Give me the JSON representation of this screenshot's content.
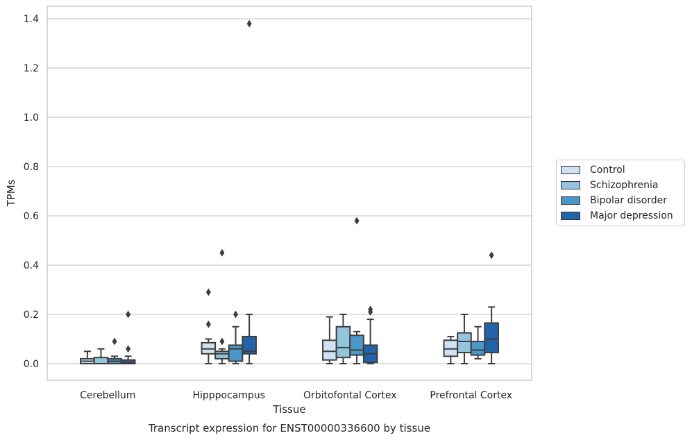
{
  "chart_data": {
    "type": "boxplot",
    "title": "Transcript expression for ENST00000336600 by tissue",
    "xlabel": "Tissue",
    "ylabel": "TPMs",
    "ylim": [
      -0.065,
      1.45
    ],
    "yticks": [
      "0.0",
      "0.2",
      "0.4",
      "0.6",
      "0.8",
      "1.0",
      "1.2",
      "1.4"
    ],
    "grid": "horizontal",
    "legend_position": "right",
    "categories": [
      "Cerebellum",
      "Hipppocampus",
      "Orbitofontal Cortex",
      "Prefrontal Cortex"
    ],
    "series": [
      {
        "name": "Control",
        "color": "#cfe1f2",
        "boxes": [
          {
            "whisker_low": 0.0,
            "q1": 0.0,
            "median": 0.01,
            "q3": 0.02,
            "whisker_high": 0.05,
            "outliers": []
          },
          {
            "whisker_low": 0.0,
            "q1": 0.04,
            "median": 0.06,
            "q3": 0.085,
            "whisker_high": 0.1,
            "outliers": [
              0.29,
              0.16
            ]
          },
          {
            "whisker_low": 0.0,
            "q1": 0.015,
            "median": 0.05,
            "q3": 0.095,
            "whisker_high": 0.19,
            "outliers": []
          },
          {
            "whisker_low": 0.0,
            "q1": 0.03,
            "median": 0.06,
            "q3": 0.095,
            "whisker_high": 0.11,
            "outliers": []
          }
        ]
      },
      {
        "name": "Schizophrenia",
        "color": "#93c4de",
        "boxes": [
          {
            "whisker_low": 0.0,
            "q1": 0.0,
            "median": 0.0,
            "q3": 0.025,
            "whisker_high": 0.06,
            "outliers": []
          },
          {
            "whisker_low": 0.0,
            "q1": 0.02,
            "median": 0.04,
            "q3": 0.05,
            "whisker_high": 0.06,
            "outliers": [
              0.45,
              0.09
            ]
          },
          {
            "whisker_low": 0.0,
            "q1": 0.025,
            "median": 0.065,
            "q3": 0.15,
            "whisker_high": 0.2,
            "outliers": []
          },
          {
            "whisker_low": 0.0,
            "q1": 0.045,
            "median": 0.09,
            "q3": 0.125,
            "whisker_high": 0.2,
            "outliers": []
          }
        ]
      },
      {
        "name": "Bipolar disorder",
        "color": "#4a98c9",
        "boxes": [
          {
            "whisker_low": 0.0,
            "q1": 0.0,
            "median": 0.01,
            "q3": 0.02,
            "whisker_high": 0.03,
            "outliers": [
              0.09
            ]
          },
          {
            "whisker_low": 0.0,
            "q1": 0.01,
            "median": 0.06,
            "q3": 0.075,
            "whisker_high": 0.15,
            "outliers": [
              0.2
            ]
          },
          {
            "whisker_low": 0.0,
            "q1": 0.035,
            "median": 0.055,
            "q3": 0.115,
            "whisker_high": 0.13,
            "outliers": [
              0.58
            ]
          },
          {
            "whisker_low": 0.02,
            "q1": 0.035,
            "median": 0.055,
            "q3": 0.09,
            "whisker_high": 0.15,
            "outliers": []
          }
        ]
      },
      {
        "name": "Major depression",
        "color": "#2363a8",
        "boxes": [
          {
            "whisker_low": 0.0,
            "q1": 0.0,
            "median": 0.005,
            "q3": 0.015,
            "whisker_high": 0.03,
            "outliers": [
              0.2,
              0.06
            ]
          },
          {
            "whisker_low": 0.0,
            "q1": 0.04,
            "median": 0.05,
            "q3": 0.11,
            "whisker_high": 0.2,
            "outliers": [
              1.38
            ]
          },
          {
            "whisker_low": 0.0,
            "q1": 0.005,
            "median": 0.04,
            "q3": 0.075,
            "whisker_high": 0.18,
            "outliers": [
              0.21,
              0.22
            ]
          },
          {
            "whisker_low": 0.0,
            "q1": 0.045,
            "median": 0.1,
            "q3": 0.165,
            "whisker_high": 0.23,
            "outliers": [
              0.44
            ]
          }
        ]
      }
    ]
  }
}
